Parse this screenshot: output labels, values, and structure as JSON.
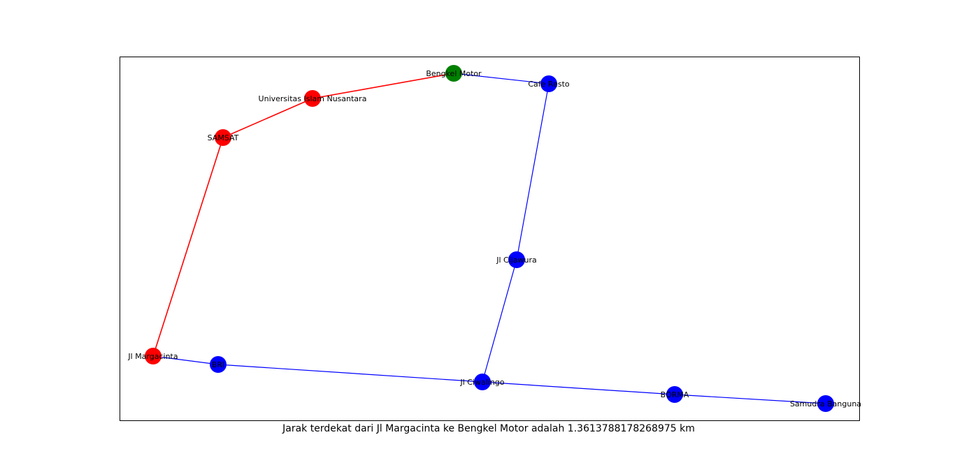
{
  "caption": "Jarak terdekat dari Jl Margacinta ke Bengkel Motor adalah 1.3613788178268975 km",
  "colors": {
    "path": "#ff0000",
    "start_node": "#008000",
    "default": "#0000ff",
    "frame": "#000000"
  },
  "graph": {
    "nodes": [
      {
        "id": "bengkel",
        "label": "Bengkel Motor",
        "role": "target"
      },
      {
        "id": "cafe",
        "label": "Cafe Resto",
        "role": "default"
      },
      {
        "id": "uninus",
        "label": "Universitas Islam Nusantara",
        "role": "path"
      },
      {
        "id": "samsat",
        "label": "SAMSAT",
        "role": "path"
      },
      {
        "id": "cijawura",
        "label": "Jl Cijawura",
        "role": "default"
      },
      {
        "id": "margacinta",
        "label": "Jl Margacinta",
        "role": "path"
      },
      {
        "id": "bri",
        "label": "BRI",
        "role": "default"
      },
      {
        "id": "ciwalingo",
        "label": "Jl Ciwalingo",
        "role": "default"
      },
      {
        "id": "borma",
        "label": "BORMA",
        "role": "default"
      },
      {
        "id": "samudra",
        "label": "Samudra Banguna",
        "role": "default"
      }
    ],
    "edges": [
      {
        "from": "bengkel",
        "to": "cafe",
        "on_path": false
      },
      {
        "from": "bengkel",
        "to": "uninus",
        "on_path": true
      },
      {
        "from": "uninus",
        "to": "samsat",
        "on_path": true
      },
      {
        "from": "samsat",
        "to": "margacinta",
        "on_path": true
      },
      {
        "from": "cafe",
        "to": "cijawura",
        "on_path": false
      },
      {
        "from": "cijawura",
        "to": "ciwalingo",
        "on_path": false
      },
      {
        "from": "margacinta",
        "to": "bri",
        "on_path": false
      },
      {
        "from": "bri",
        "to": "ciwalingo",
        "on_path": false
      },
      {
        "from": "ciwalingo",
        "to": "borma",
        "on_path": false
      },
      {
        "from": "borma",
        "to": "samudra",
        "on_path": false
      }
    ]
  }
}
